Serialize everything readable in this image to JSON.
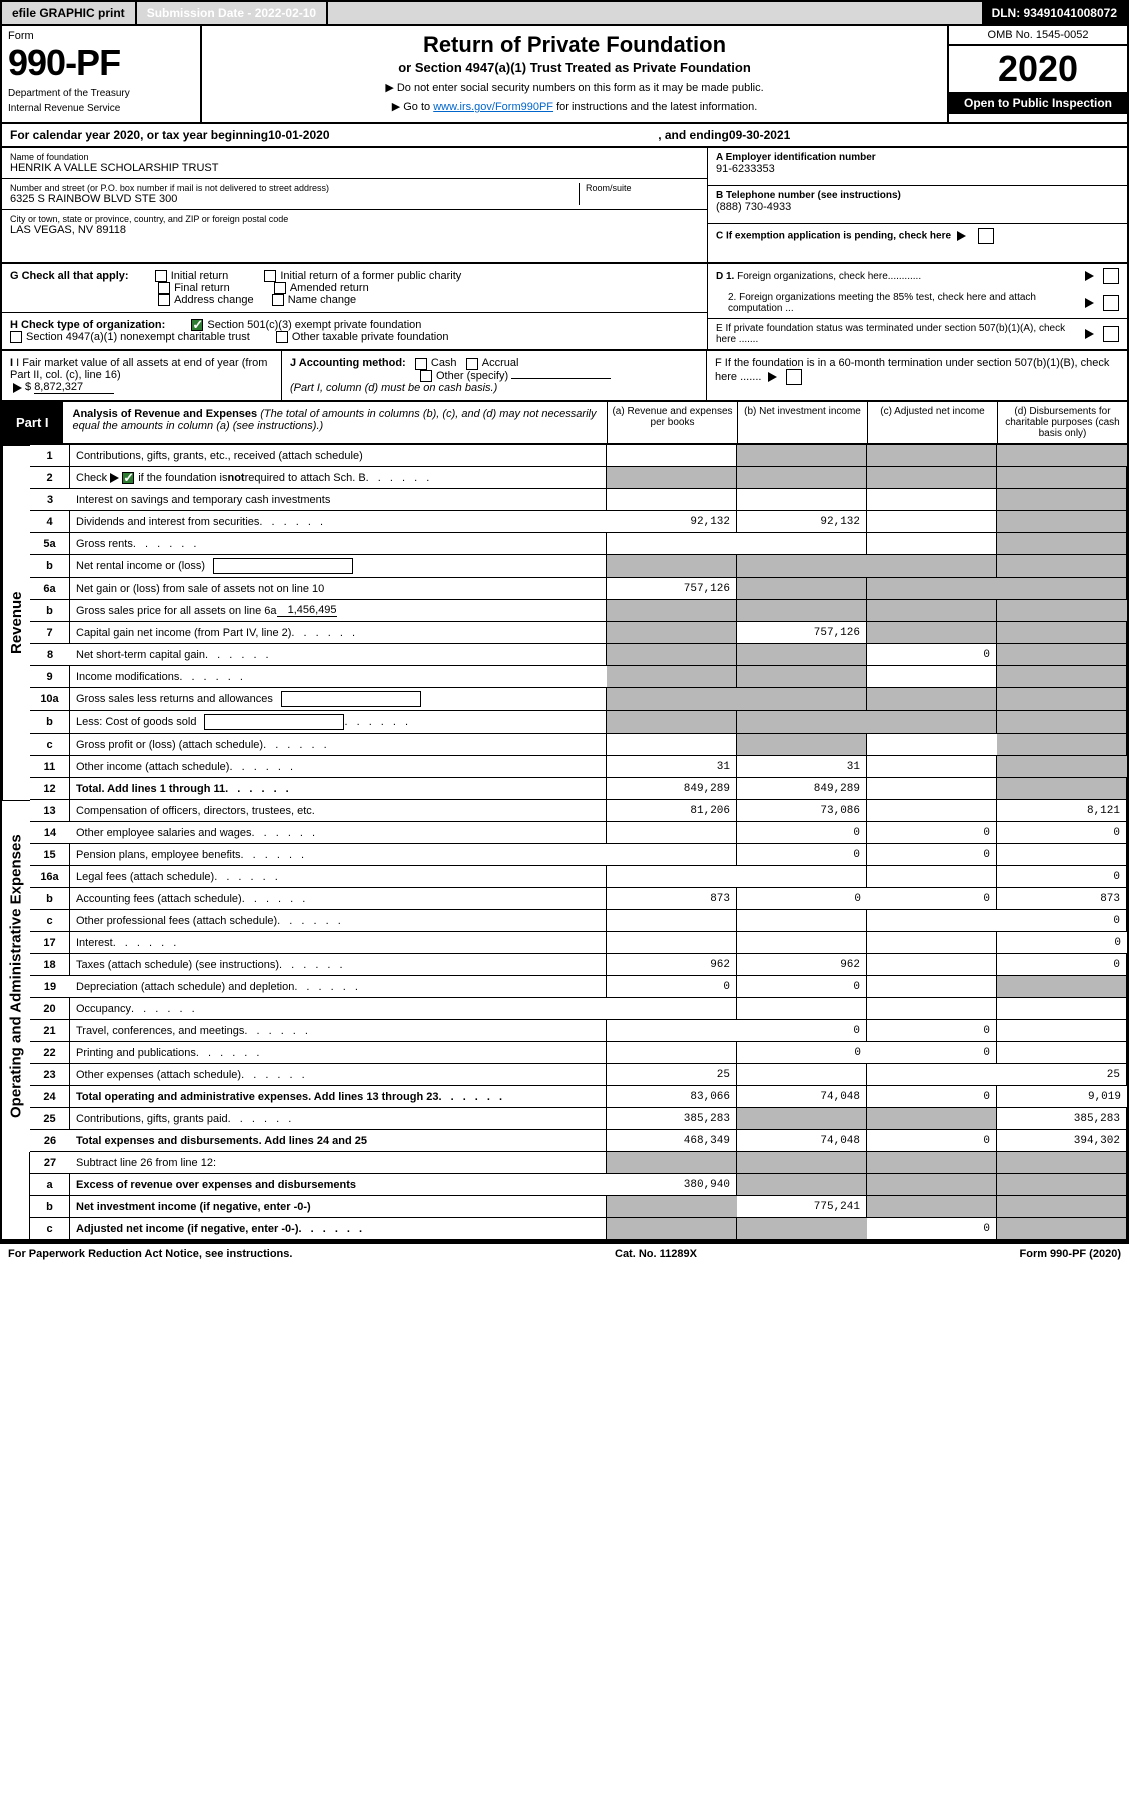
{
  "topbar": {
    "efile": "efile GRAPHIC print",
    "submission": "Submission Date - 2022-02-10",
    "dln": "DLN: 93491041008072"
  },
  "header": {
    "form_word": "Form",
    "form_no": "990-PF",
    "dept": "Department of the Treasury",
    "irs": "Internal Revenue Service",
    "title": "Return of Private Foundation",
    "subtitle": "or Section 4947(a)(1) Trust Treated as Private Foundation",
    "note1": "▶ Do not enter social security numbers on this form as it may be made public.",
    "note2_pre": "▶ Go to ",
    "note2_link": "www.irs.gov/Form990PF",
    "note2_post": " for instructions and the latest information.",
    "omb": "OMB No. 1545-0052",
    "year": "2020",
    "open": "Open to Public Inspection"
  },
  "calendar": {
    "pre": "For calendar year 2020, or tax year beginning ",
    "begin": "10-01-2020",
    "mid": " , and ending ",
    "end": "09-30-2021"
  },
  "id": {
    "name_lbl": "Name of foundation",
    "name": "HENRIK A VALLE SCHOLARSHIP TRUST",
    "addr_lbl": "Number and street (or P.O. box number if mail is not delivered to street address)",
    "addr": "6325 S RAINBOW BLVD STE 300",
    "room_lbl": "Room/suite",
    "city_lbl": "City or town, state or province, country, and ZIP or foreign postal code",
    "city": "LAS VEGAS, NV  89118",
    "a_lbl": "A Employer identification number",
    "a_val": "91-6233353",
    "b_lbl": "B Telephone number (see instructions)",
    "b_val": "(888) 730-4933",
    "c_lbl": "C If exemption application is pending, check here",
    "d1": "D 1. Foreign organizations, check here............",
    "d2": "2. Foreign organizations meeting the 85% test, check here and attach computation ...",
    "e": "E  If private foundation status was terminated under section 507(b)(1)(A), check here .......",
    "f": "F  If the foundation is in a 60-month termination under section 507(b)(1)(B), check here .......",
    "g_lbl": "G Check all that apply:",
    "g_opts": [
      "Initial return",
      "Final return",
      "Address change",
      "Initial return of a former public charity",
      "Amended return",
      "Name change"
    ],
    "h_lbl": "H Check type of organization:",
    "h1": "Section 501(c)(3) exempt private foundation",
    "h2": "Section 4947(a)(1) nonexempt charitable trust",
    "h3": "Other taxable private foundation",
    "i_lbl": "I Fair market value of all assets at end of year (from Part II, col. (c), line 16)",
    "i_val": "8,872,327",
    "j_lbl": "J Accounting method:",
    "j_cash": "Cash",
    "j_accr": "Accrual",
    "j_other": "Other (specify)",
    "j_note": "(Part I, column (d) must be on cash basis.)"
  },
  "part1": {
    "tab": "Part I",
    "title": "Analysis of Revenue and Expenses",
    "note": " (The total of amounts in columns (b), (c), and (d) may not necessarily equal the amounts in column (a) (see instructions).)",
    "col_a": "(a)   Revenue and expenses per books",
    "col_b": "(b)  Net investment income",
    "col_c": "(c)  Adjusted net income",
    "col_d": "(d)  Disbursements for charitable purposes (cash basis only)"
  },
  "side": {
    "rev": "Revenue",
    "exp": "Operating and Administrative Expenses"
  },
  "rows": [
    {
      "n": "1",
      "d": "Contributions, gifts, grants, etc., received (attach schedule)",
      "a": "",
      "b": "",
      "c": "",
      "dd": "",
      "sb": true,
      "sc": true,
      "sd": true
    },
    {
      "n": "2",
      "d": "Check ▶ [✓] if the foundation is not required to attach Sch. B",
      "a": "",
      "b": "",
      "c": "",
      "dd": "",
      "dots": true,
      "sa": true,
      "sb": true,
      "sc": true,
      "sd": true,
      "checkbox": true
    },
    {
      "n": "3",
      "d": "Interest on savings and temporary cash investments",
      "a": "",
      "b": "",
      "c": "",
      "dd": "",
      "sd": true
    },
    {
      "n": "4",
      "d": "Dividends and interest from securities",
      "a": "92,132",
      "b": "92,132",
      "c": "",
      "dd": "",
      "dots": true,
      "sd": true
    },
    {
      "n": "5a",
      "d": "Gross rents",
      "a": "",
      "b": "",
      "c": "",
      "dd": "",
      "dots": true,
      "sd": true
    },
    {
      "n": "b",
      "d": "Net rental income or (loss)",
      "a": "",
      "b": "",
      "c": "",
      "dd": "",
      "sa": true,
      "sb": true,
      "sc": true,
      "sd": true,
      "inline": true
    },
    {
      "n": "6a",
      "d": "Net gain or (loss) from sale of assets not on line 10",
      "a": "757,126",
      "b": "",
      "c": "",
      "dd": "",
      "sb": true,
      "sc": true,
      "sd": true
    },
    {
      "n": "b",
      "d": "Gross sales price for all assets on line 6a",
      "a": "",
      "b": "",
      "c": "",
      "dd": "",
      "sa": true,
      "sb": true,
      "sc": true,
      "sd": true,
      "inlineVal": "1,456,495"
    },
    {
      "n": "7",
      "d": "Capital gain net income (from Part IV, line 2)",
      "a": "",
      "b": "757,126",
      "c": "",
      "dd": "",
      "dots": true,
      "sa": true,
      "sc": true,
      "sd": true
    },
    {
      "n": "8",
      "d": "Net short-term capital gain",
      "a": "",
      "b": "",
      "c": "0",
      "dd": "",
      "dots": true,
      "sa": true,
      "sb": true,
      "sd": true
    },
    {
      "n": "9",
      "d": "Income modifications",
      "a": "",
      "b": "",
      "c": "",
      "dd": "",
      "dots": true,
      "sa": true,
      "sb": true,
      "sd": true
    },
    {
      "n": "10a",
      "d": "Gross sales less returns and allowances",
      "a": "",
      "b": "",
      "c": "",
      "dd": "",
      "sa": true,
      "sb": true,
      "sc": true,
      "sd": true,
      "inline": true
    },
    {
      "n": "b",
      "d": "Less: Cost of goods sold",
      "a": "",
      "b": "",
      "c": "",
      "dd": "",
      "dots": true,
      "sa": true,
      "sb": true,
      "sc": true,
      "sd": true,
      "inline": true
    },
    {
      "n": "c",
      "d": "Gross profit or (loss) (attach schedule)",
      "a": "",
      "b": "",
      "c": "",
      "dd": "",
      "dots": true,
      "sb": true,
      "sd": true
    },
    {
      "n": "11",
      "d": "Other income (attach schedule)",
      "a": "31",
      "b": "31",
      "c": "",
      "dd": "",
      "dots": true,
      "sd": true
    },
    {
      "n": "12",
      "d": "Total. Add lines 1 through 11",
      "a": "849,289",
      "b": "849,289",
      "c": "",
      "dd": "",
      "dots": true,
      "bold": true,
      "sd": true
    },
    {
      "n": "13",
      "d": "Compensation of officers, directors, trustees, etc.",
      "a": "81,206",
      "b": "73,086",
      "c": "",
      "dd": "8,121"
    },
    {
      "n": "14",
      "d": "Other employee salaries and wages",
      "a": "",
      "b": "0",
      "c": "0",
      "dd": "0",
      "dots": true
    },
    {
      "n": "15",
      "d": "Pension plans, employee benefits",
      "a": "",
      "b": "0",
      "c": "0",
      "dd": "",
      "dots": true
    },
    {
      "n": "16a",
      "d": "Legal fees (attach schedule)",
      "a": "",
      "b": "",
      "c": "",
      "dd": "0",
      "dots": true
    },
    {
      "n": "b",
      "d": "Accounting fees (attach schedule)",
      "a": "873",
      "b": "0",
      "c": "0",
      "dd": "873",
      "dots": true
    },
    {
      "n": "c",
      "d": "Other professional fees (attach schedule)",
      "a": "",
      "b": "",
      "c": "",
      "dd": "0",
      "dots": true
    },
    {
      "n": "17",
      "d": "Interest",
      "a": "",
      "b": "",
      "c": "",
      "dd": "0",
      "dots": true
    },
    {
      "n": "18",
      "d": "Taxes (attach schedule) (see instructions)",
      "a": "962",
      "b": "962",
      "c": "",
      "dd": "0",
      "dots": true
    },
    {
      "n": "19",
      "d": "Depreciation (attach schedule) and depletion",
      "a": "0",
      "b": "0",
      "c": "",
      "dd": "",
      "dots": true,
      "sd": true
    },
    {
      "n": "20",
      "d": "Occupancy",
      "a": "",
      "b": "",
      "c": "",
      "dd": "",
      "dots": true
    },
    {
      "n": "21",
      "d": "Travel, conferences, and meetings",
      "a": "",
      "b": "0",
      "c": "0",
      "dd": "",
      "dots": true
    },
    {
      "n": "22",
      "d": "Printing and publications",
      "a": "",
      "b": "0",
      "c": "0",
      "dd": "",
      "dots": true
    },
    {
      "n": "23",
      "d": "Other expenses (attach schedule)",
      "a": "25",
      "b": "",
      "c": "",
      "dd": "25",
      "dots": true
    },
    {
      "n": "24",
      "d": "Total operating and administrative expenses. Add lines 13 through 23",
      "a": "83,066",
      "b": "74,048",
      "c": "0",
      "dd": "9,019",
      "dots": true,
      "bold": true
    },
    {
      "n": "25",
      "d": "Contributions, gifts, grants paid",
      "a": "385,283",
      "b": "",
      "c": "",
      "dd": "385,283",
      "dots": true,
      "sb": true,
      "sc": true
    },
    {
      "n": "26",
      "d": "Total expenses and disbursements. Add lines 24 and 25",
      "a": "468,349",
      "b": "74,048",
      "c": "0",
      "dd": "394,302",
      "bold": true
    },
    {
      "n": "27",
      "d": "Subtract line 26 from line 12:",
      "a": "",
      "b": "",
      "c": "",
      "dd": "",
      "sa": true,
      "sb": true,
      "sc": true,
      "sd": true
    },
    {
      "n": "a",
      "d": "Excess of revenue over expenses and disbursements",
      "a": "380,940",
      "b": "",
      "c": "",
      "dd": "",
      "bold": true,
      "sb": true,
      "sc": true,
      "sd": true
    },
    {
      "n": "b",
      "d": "Net investment income (if negative, enter -0-)",
      "a": "",
      "b": "775,241",
      "c": "",
      "dd": "",
      "bold": true,
      "sa": true,
      "sc": true,
      "sd": true
    },
    {
      "n": "c",
      "d": "Adjusted net income (if negative, enter -0-)",
      "a": "",
      "b": "",
      "c": "0",
      "dd": "",
      "bold": true,
      "dots": true,
      "sa": true,
      "sb": true,
      "sd": true
    }
  ],
  "footer": {
    "left": "For Paperwork Reduction Act Notice, see instructions.",
    "mid": "Cat. No. 11289X",
    "right": "Form 990-PF (2020)"
  }
}
